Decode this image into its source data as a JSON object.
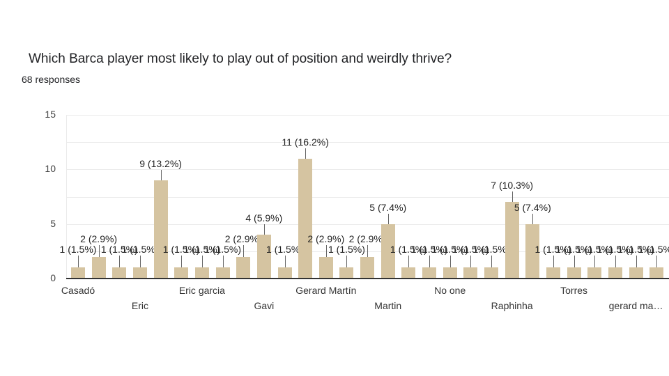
{
  "header": {
    "title": "Which Barca player most likely to play out of position and weirdly thrive?",
    "responses": "68 responses"
  },
  "chart_data": {
    "type": "bar",
    "title": "Which Barca player most likely to play out of position and weirdly thrive?",
    "subtitle": "68 responses",
    "xlabel": "",
    "ylabel": "",
    "ylim": [
      0,
      15
    ],
    "yticks": [
      0,
      5,
      10,
      15
    ],
    "grid": true,
    "legend": null,
    "bar_color": "#d5c4a1",
    "categories": [
      "Casadó",
      "",
      "",
      "Eric",
      "",
      "",
      "Eric garcia",
      "",
      "",
      "Gavi",
      "",
      "",
      "Gerard Martín",
      "",
      "",
      "Martin",
      "",
      "",
      "No one",
      "",
      "",
      "Raphinha",
      "",
      "",
      "Torres",
      "",
      "",
      "gerard ma…",
      ""
    ],
    "values": [
      1,
      2,
      1,
      1,
      9,
      1,
      1,
      1,
      2,
      4,
      1,
      11,
      2,
      1,
      2,
      5,
      1,
      1,
      1,
      1,
      1,
      7,
      5,
      1,
      1,
      1,
      1,
      1,
      1
    ],
    "data_labels": [
      "1 (1.5%)",
      "2 (2.9%)",
      "1 (1.5%)",
      "1 (1.5%)",
      "9 (13.2%)",
      "1 (1.5%)",
      "1 (1.5%)",
      "1 (1.5%)",
      "2 (2.9%)",
      "4 (5.9%)",
      "1 (1.5%)",
      "11 (16.2%)",
      "2 (2.9%)",
      "1 (1.5%)",
      "2 (2.9%)",
      "5 (7.4%)",
      "1 (1.5%)",
      "1 (1.5%)",
      "1 (1.5%)",
      "1 (1.5%)",
      "1 (1.5%)",
      "7 (10.3%)",
      "5 (7.4%)",
      "1 (1.5%)",
      "1 (1.5%)",
      "1 (1.5%)",
      "1 (1.5%)",
      "1 (1.5%)",
      "1 (1.5%)"
    ],
    "x_tick_labels_visible": [
      {
        "index": 0,
        "label": "Casadó",
        "row": 1
      },
      {
        "index": 3,
        "label": "Eric",
        "row": 2
      },
      {
        "index": 6,
        "label": "Eric garcia",
        "row": 1
      },
      {
        "index": 9,
        "label": "Gavi",
        "row": 2
      },
      {
        "index": 12,
        "label": "Gerard Martín",
        "row": 1
      },
      {
        "index": 15,
        "label": "Martin",
        "row": 2
      },
      {
        "index": 18,
        "label": "No one",
        "row": 1
      },
      {
        "index": 21,
        "label": "Raphinha",
        "row": 2
      },
      {
        "index": 24,
        "label": "Torres",
        "row": 1
      },
      {
        "index": 27,
        "label": "gerard ma…",
        "row": 2
      }
    ],
    "total_responses": 68
  }
}
